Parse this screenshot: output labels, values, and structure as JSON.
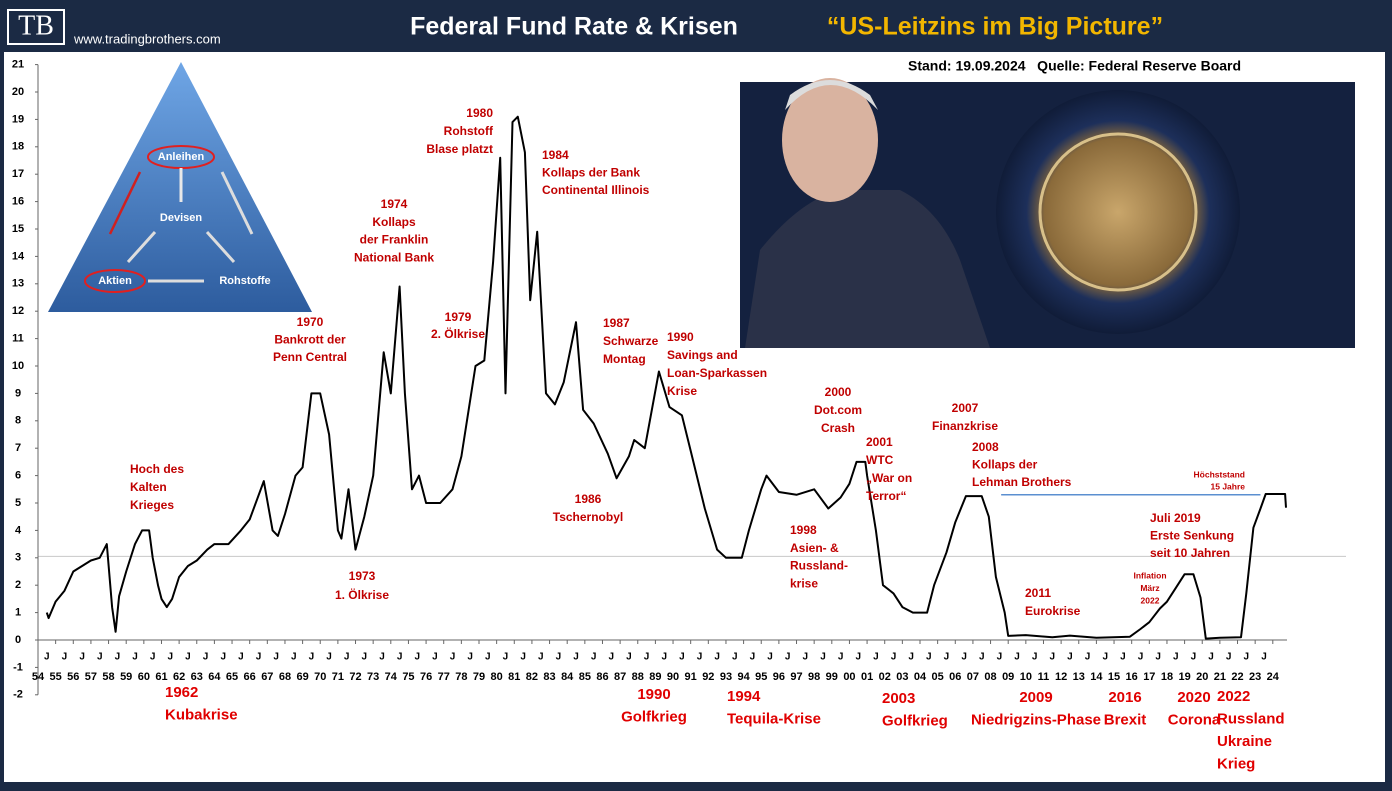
{
  "header": {
    "logo": "TB",
    "website": "www.tradingbrothers.com"
  },
  "diagram": {
    "labels": [
      "Anleihen",
      "Devisen",
      "Aktien",
      "Rohstoffe"
    ]
  },
  "chart_data": {
    "type": "line",
    "title": "Federal Fund Rate & Krisen",
    "subtitle": "“US-Leitzins im Big Picture”",
    "note": "Stand: 19.09.2024   Quelle: Federal Reserve Board",
    "color": "#000000",
    "x": [
      1954.5,
      1954.6,
      1955.0,
      1955.5,
      1956.0,
      1956.5,
      1957.0,
      1957.5,
      1957.9,
      1958.2,
      1958.4,
      1958.6,
      1959.0,
      1959.5,
      1959.9,
      1960.3,
      1960.5,
      1960.8,
      1961.0,
      1961.3,
      1961.6,
      1962.0,
      1962.5,
      1963.0,
      1963.6,
      1964.0,
      1964.8,
      1965.5,
      1966.0,
      1966.8,
      1967.3,
      1967.6,
      1968.0,
      1968.6,
      1969.0,
      1969.5,
      1970.0,
      1970.5,
      1971.0,
      1971.2,
      1971.6,
      1972.0,
      1972.5,
      1973.0,
      1973.6,
      1974.0,
      1974.5,
      1974.8,
      1975.2,
      1975.6,
      1976.0,
      1976.8,
      1977.5,
      1978.0,
      1978.8,
      1979.3,
      1979.8,
      1980.2,
      1980.5,
      1980.9,
      1981.2,
      1981.6,
      1981.9,
      1982.3,
      1982.8,
      1983.3,
      1983.8,
      1984.5,
      1984.9,
      1985.5,
      1986.3,
      1986.8,
      1987.5,
      1987.8,
      1988.4,
      1989.2,
      1989.8,
      1990.5,
      1991.0,
      1991.8,
      1992.5,
      1993.0,
      1993.9,
      1994.3,
      1995.0,
      1995.3,
      1996.0,
      1997.0,
      1998.0,
      1998.8,
      1999.5,
      2000.0,
      2000.4,
      2000.9,
      2001.0,
      2001.5,
      2001.9,
      2002.5,
      2003.0,
      2003.6,
      2004.4,
      2004.8,
      2005.5,
      2006.0,
      2006.6,
      2007.5,
      2007.9,
      2008.3,
      2008.8,
      2009.0,
      2010.0,
      2011.5,
      2012.5,
      2014.0,
      2015.9,
      2016.5,
      2017.0,
      2017.6,
      2018.0,
      2018.5,
      2019.0,
      2019.5,
      2019.9,
      2020.2,
      2021.0,
      2022.2,
      2022.5,
      2022.9,
      2023.3,
      2023.6,
      2024.7,
      2024.75
    ],
    "values": [
      1.0,
      0.8,
      1.4,
      1.8,
      2.5,
      2.7,
      2.9,
      3.0,
      3.5,
      1.2,
      0.3,
      1.6,
      2.5,
      3.5,
      4.0,
      4.0,
      3.0,
      2.0,
      1.5,
      1.2,
      1.5,
      2.3,
      2.7,
      2.9,
      3.3,
      3.5,
      3.5,
      4.0,
      4.4,
      5.8,
      4.0,
      3.8,
      4.6,
      6.0,
      6.3,
      9.0,
      9.0,
      7.5,
      4.0,
      3.7,
      5.5,
      3.3,
      4.5,
      6.0,
      10.5,
      9.0,
      12.9,
      9.0,
      5.5,
      6.0,
      5.0,
      5.0,
      5.5,
      6.7,
      10.0,
      10.2,
      13.8,
      17.6,
      9.0,
      18.9,
      19.1,
      17.8,
      12.4,
      14.9,
      9.0,
      8.6,
      9.4,
      11.6,
      8.4,
      7.9,
      6.8,
      5.9,
      6.7,
      7.3,
      7.0,
      9.8,
      8.5,
      8.2,
      6.9,
      4.8,
      3.3,
      3.0,
      3.0,
      4.0,
      5.5,
      6.0,
      5.4,
      5.3,
      5.5,
      4.8,
      5.2,
      5.7,
      6.5,
      6.5,
      6.0,
      4.0,
      2.0,
      1.7,
      1.2,
      1.0,
      1.0,
      2.0,
      3.2,
      4.3,
      5.25,
      5.25,
      4.5,
      2.3,
      1.0,
      0.15,
      0.18,
      0.1,
      0.16,
      0.08,
      0.12,
      0.4,
      0.65,
      1.15,
      1.4,
      1.9,
      2.4,
      2.4,
      1.55,
      0.05,
      0.08,
      0.1,
      1.7,
      4.1,
      4.8,
      5.33,
      5.33,
      4.83
    ],
    "xlim": [
      1954,
      2025
    ],
    "ylim": [
      -2,
      21
    ],
    "yticks": [
      -2,
      -1,
      0,
      1,
      2,
      3,
      4,
      5,
      6,
      7,
      8,
      9,
      10,
      11,
      12,
      13,
      14,
      15,
      16,
      17,
      18,
      19,
      20,
      21
    ],
    "xticks": [
      {
        "value": 1954,
        "label": "54"
      },
      {
        "value": 1955,
        "label": "55"
      },
      {
        "value": 1956,
        "label": "56"
      },
      {
        "value": 1957,
        "label": "57"
      },
      {
        "value": 1958,
        "label": "58"
      },
      {
        "value": 1959,
        "label": "59"
      },
      {
        "value": 1960,
        "label": "60"
      },
      {
        "value": 1961,
        "label": "61"
      },
      {
        "value": 1962,
        "label": "62"
      },
      {
        "value": 1963,
        "label": "63"
      },
      {
        "value": 1964,
        "label": "64"
      },
      {
        "value": 1965,
        "label": "65"
      },
      {
        "value": 1966,
        "label": "66"
      },
      {
        "value": 1967,
        "label": "67"
      },
      {
        "value": 1968,
        "label": "68"
      },
      {
        "value": 1969,
        "label": "69"
      },
      {
        "value": 1970,
        "label": "70"
      },
      {
        "value": 1971,
        "label": "71"
      },
      {
        "value": 1972,
        "label": "72"
      },
      {
        "value": 1973,
        "label": "73"
      },
      {
        "value": 1974,
        "label": "74"
      },
      {
        "value": 1975,
        "label": "75"
      },
      {
        "value": 1976,
        "label": "76"
      },
      {
        "value": 1977,
        "label": "77"
      },
      {
        "value": 1978,
        "label": "78"
      },
      {
        "value": 1979,
        "label": "79"
      },
      {
        "value": 1980,
        "label": "80"
      },
      {
        "value": 1981,
        "label": "81"
      },
      {
        "value": 1982,
        "label": "82"
      },
      {
        "value": 1983,
        "label": "83"
      },
      {
        "value": 1984,
        "label": "84"
      },
      {
        "value": 1985,
        "label": "85"
      },
      {
        "value": 1986,
        "label": "86"
      },
      {
        "value": 1987,
        "label": "87"
      },
      {
        "value": 1988,
        "label": "88"
      },
      {
        "value": 1989,
        "label": "89"
      },
      {
        "value": 1990,
        "label": "90"
      },
      {
        "value": 1991,
        "label": "91"
      },
      {
        "value": 1992,
        "label": "92"
      },
      {
        "value": 1993,
        "label": "93"
      },
      {
        "value": 1994,
        "label": "94"
      },
      {
        "value": 1995,
        "label": "95"
      },
      {
        "value": 1996,
        "label": "96"
      },
      {
        "value": 1997,
        "label": "97"
      },
      {
        "value": 1998,
        "label": "98"
      },
      {
        "value": 1999,
        "label": "99"
      },
      {
        "value": 2000,
        "label": "00"
      },
      {
        "value": 2001,
        "label": "01"
      },
      {
        "value": 2002,
        "label": "02"
      },
      {
        "value": 2003,
        "label": "03"
      },
      {
        "value": 2004,
        "label": "04"
      },
      {
        "value": 2005,
        "label": "05"
      },
      {
        "value": 2006,
        "label": "06"
      },
      {
        "value": 2007,
        "label": "07"
      },
      {
        "value": 2008,
        "label": "08"
      },
      {
        "value": 2009,
        "label": "09"
      },
      {
        "value": 2010,
        "label": "10"
      },
      {
        "value": 2011,
        "label": "11"
      },
      {
        "value": 2012,
        "label": "12"
      },
      {
        "value": 2013,
        "label": "13"
      },
      {
        "value": 2014,
        "label": "14"
      },
      {
        "value": 2015,
        "label": "15"
      },
      {
        "value": 2016,
        "label": "16"
      },
      {
        "value": 2017,
        "label": "17"
      },
      {
        "value": 2018,
        "label": "18"
      },
      {
        "value": 2019,
        "label": "19"
      },
      {
        "value": 2020,
        "label": "20"
      },
      {
        "value": 2021,
        "label": "21"
      },
      {
        "value": 2022,
        "label": "22"
      },
      {
        "value": 2023,
        "label": "23"
      },
      {
        "value": 2024,
        "label": "24"
      }
    ],
    "month_marker": "J",
    "reference_lines": [
      {
        "value": 3.05,
        "color": "#c8c8c8"
      },
      {
        "value": 5.3,
        "from": 2008.6,
        "to": 2023.3,
        "color": "#5b8fd0"
      }
    ],
    "annotations": [
      {
        "lines": [
          "Hoch des",
          "Kalten",
          "Krieges"
        ],
        "color": "#c00000"
      },
      {
        "lines": [
          "1970",
          "Bankrott der",
          "Penn Central"
        ],
        "color": "#c00000"
      },
      {
        "lines": [
          "1973",
          "1. Ölkrise"
        ],
        "color": "#c00000"
      },
      {
        "lines": [
          "1974",
          "Kollaps",
          "der Franklin",
          "National Bank"
        ],
        "color": "#c00000"
      },
      {
        "lines": [
          "1979",
          "2. Ölkrise"
        ],
        "color": "#c00000"
      },
      {
        "lines": [
          "1980",
          "Rohstoff",
          "Blase platzt"
        ],
        "color": "#c00000"
      },
      {
        "lines": [
          "1984",
          "Kollaps der Bank",
          "Continental Illinois"
        ],
        "color": "#c00000"
      },
      {
        "lines": [
          "1987",
          "Schwarze",
          "Montag"
        ],
        "color": "#c00000"
      },
      {
        "lines": [
          "1986",
          "Tschernobyl"
        ],
        "color": "#c00000"
      },
      {
        "lines": [
          "1990",
          "Savings and",
          "Loan-Sparkassen",
          "Krise"
        ],
        "color": "#c00000"
      },
      {
        "lines": [
          "1998",
          "Asien- &",
          "Russland-",
          "krise"
        ],
        "color": "#c00000"
      },
      {
        "lines": [
          "2000",
          "Dot.com",
          "Crash"
        ],
        "color": "#c00000"
      },
      {
        "lines": [
          "2001",
          "WTC",
          "„War on",
          "Terror“"
        ],
        "color": "#c00000"
      },
      {
        "lines": [
          "2007",
          "Finanzkrise"
        ],
        "color": "#c00000"
      },
      {
        "lines": [
          "2008",
          "Kollaps der",
          "Lehman Brothers"
        ],
        "color": "#c00000"
      },
      {
        "lines": [
          "2011",
          "Eurokrise"
        ],
        "color": "#c00000"
      },
      {
        "lines": [
          "Inflation",
          "März",
          "2022"
        ],
        "color": "#c00000"
      },
      {
        "lines": [
          "Juli 2019",
          "Erste Senkung",
          "seit 10 Jahren"
        ],
        "color": "#c00000"
      },
      {
        "lines": [
          "Höchststand",
          "15 Jahre"
        ],
        "color": "#c00000"
      }
    ],
    "events": [
      {
        "lines": [
          "1962",
          "Kubakrise"
        ],
        "color": "#e00000"
      },
      {
        "lines": [
          "1990",
          "Golfkrieg"
        ],
        "color": "#e00000"
      },
      {
        "lines": [
          "1994",
          "Tequila-Krise"
        ],
        "color": "#e00000"
      },
      {
        "lines": [
          "2003",
          "Golfkrieg"
        ],
        "color": "#e00000"
      },
      {
        "lines": [
          "2009",
          "Niedrigzins-Phase"
        ],
        "color": "#e00000"
      },
      {
        "lines": [
          "2016",
          "Brexit"
        ],
        "color": "#e00000"
      },
      {
        "lines": [
          "2020",
          "Corona"
        ],
        "color": "#e00000"
      },
      {
        "lines": [
          "2022",
          "Russland",
          "Ukraine",
          "Krieg"
        ],
        "color": "#e00000"
      }
    ]
  }
}
